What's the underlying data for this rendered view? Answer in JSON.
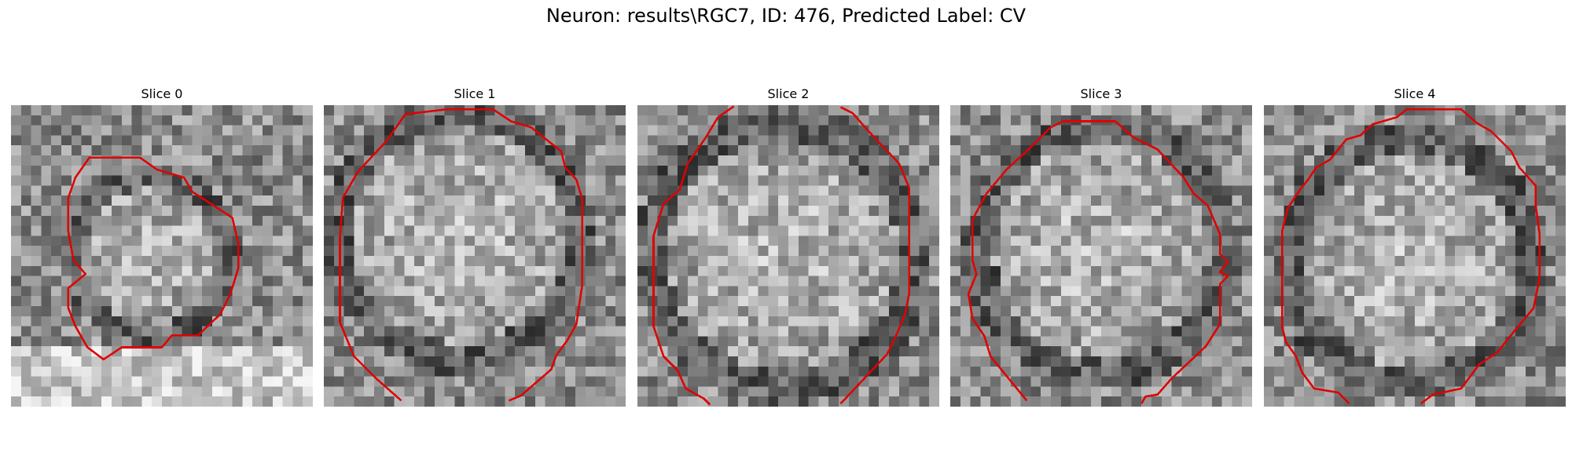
{
  "figure": {
    "title": "Neuron: results\\RGC7, ID: 476, Predicted Label: CV"
  },
  "panels": [
    {
      "title": "Slice 0"
    },
    {
      "title": "Slice 1"
    },
    {
      "title": "Slice 2"
    },
    {
      "title": "Slice 3"
    },
    {
      "title": "Slice 4"
    }
  ],
  "colors": {
    "contour": "#e00000",
    "background": "#ffffff"
  }
}
